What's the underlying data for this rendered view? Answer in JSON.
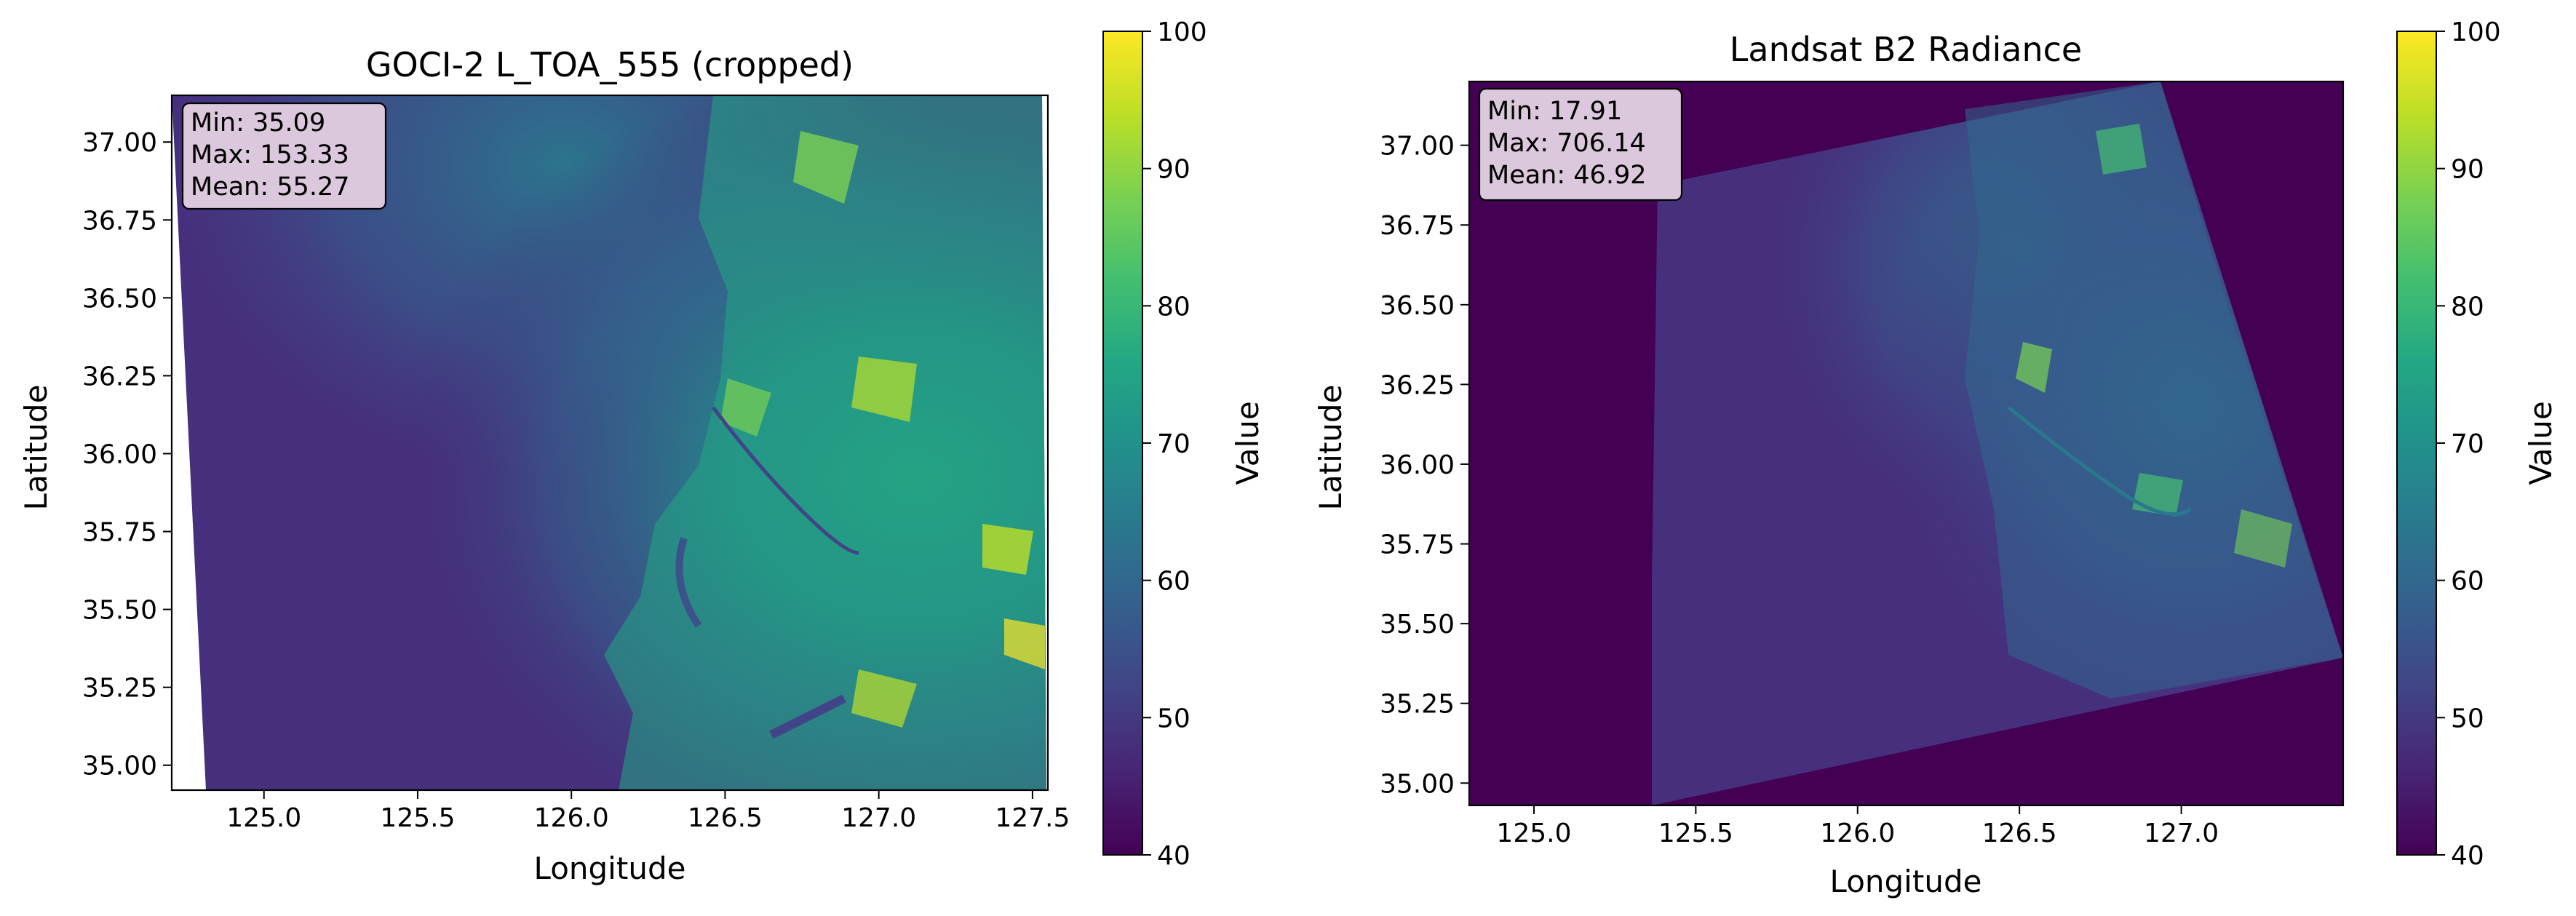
{
  "colors": {
    "viridis": [
      "#440154",
      "#482475",
      "#414487",
      "#355f8d",
      "#2a788e",
      "#21918c",
      "#22a884",
      "#44bf70",
      "#7ad151",
      "#bddf26",
      "#fde725"
    ],
    "background": "#440154",
    "stats_box": "#dcc8dc"
  },
  "chart_data": [
    {
      "type": "heatmap",
      "title": "GOCI-2 L_TOA_555 (cropped)",
      "xlabel": "Longitude",
      "ylabel": "Latitude",
      "xlim": [
        124.7,
        127.55
      ],
      "ylim": [
        34.92,
        37.15
      ],
      "xticks": [
        "125.0",
        "125.5",
        "126.0",
        "126.5",
        "127.0",
        "127.5"
      ],
      "xtick_values": [
        125.0,
        125.5,
        126.0,
        126.5,
        127.0,
        127.5
      ],
      "yticks": [
        "35.00",
        "35.25",
        "35.50",
        "35.75",
        "36.00",
        "36.25",
        "36.50",
        "36.75",
        "37.00"
      ],
      "ytick_values": [
        35.0,
        35.25,
        35.5,
        35.75,
        36.0,
        36.25,
        36.5,
        36.75,
        37.0
      ],
      "stats": [
        "Min: 35.09",
        "Max: 153.33",
        "Mean: 55.27"
      ],
      "colorbar": {
        "label": "Value",
        "range": [
          40,
          100
        ],
        "ticks": [
          "40",
          "50",
          "60",
          "70",
          "80",
          "90",
          "100"
        ],
        "tick_values": [
          40,
          50,
          60,
          70,
          80,
          90,
          100
        ],
        "colormap": "viridis"
      },
      "grid": false
    },
    {
      "type": "heatmap",
      "title": "Landsat B2 Radiance",
      "xlabel": "Longitude",
      "ylabel": "Latitude",
      "xlim": [
        124.8,
        127.5
      ],
      "ylim": [
        34.93,
        37.2
      ],
      "xticks": [
        "125.0",
        "125.5",
        "126.0",
        "126.5",
        "127.0"
      ],
      "xtick_values": [
        125.0,
        125.5,
        126.0,
        126.5,
        127.0
      ],
      "yticks": [
        "35.00",
        "35.25",
        "35.50",
        "35.75",
        "36.00",
        "36.25",
        "36.50",
        "36.75",
        "37.00"
      ],
      "ytick_values": [
        35.0,
        35.25,
        35.5,
        35.75,
        36.0,
        36.25,
        36.5,
        36.75,
        37.0
      ],
      "stats": [
        "Min: 17.91",
        "Max: 706.14",
        "Mean: 46.92"
      ],
      "colorbar": {
        "label": "Value",
        "range": [
          40,
          100
        ],
        "ticks": [
          "40",
          "50",
          "60",
          "70",
          "80",
          "90",
          "100"
        ],
        "tick_values": [
          40,
          50,
          60,
          70,
          80,
          90,
          100
        ],
        "colormap": "viridis"
      },
      "grid": false
    }
  ]
}
